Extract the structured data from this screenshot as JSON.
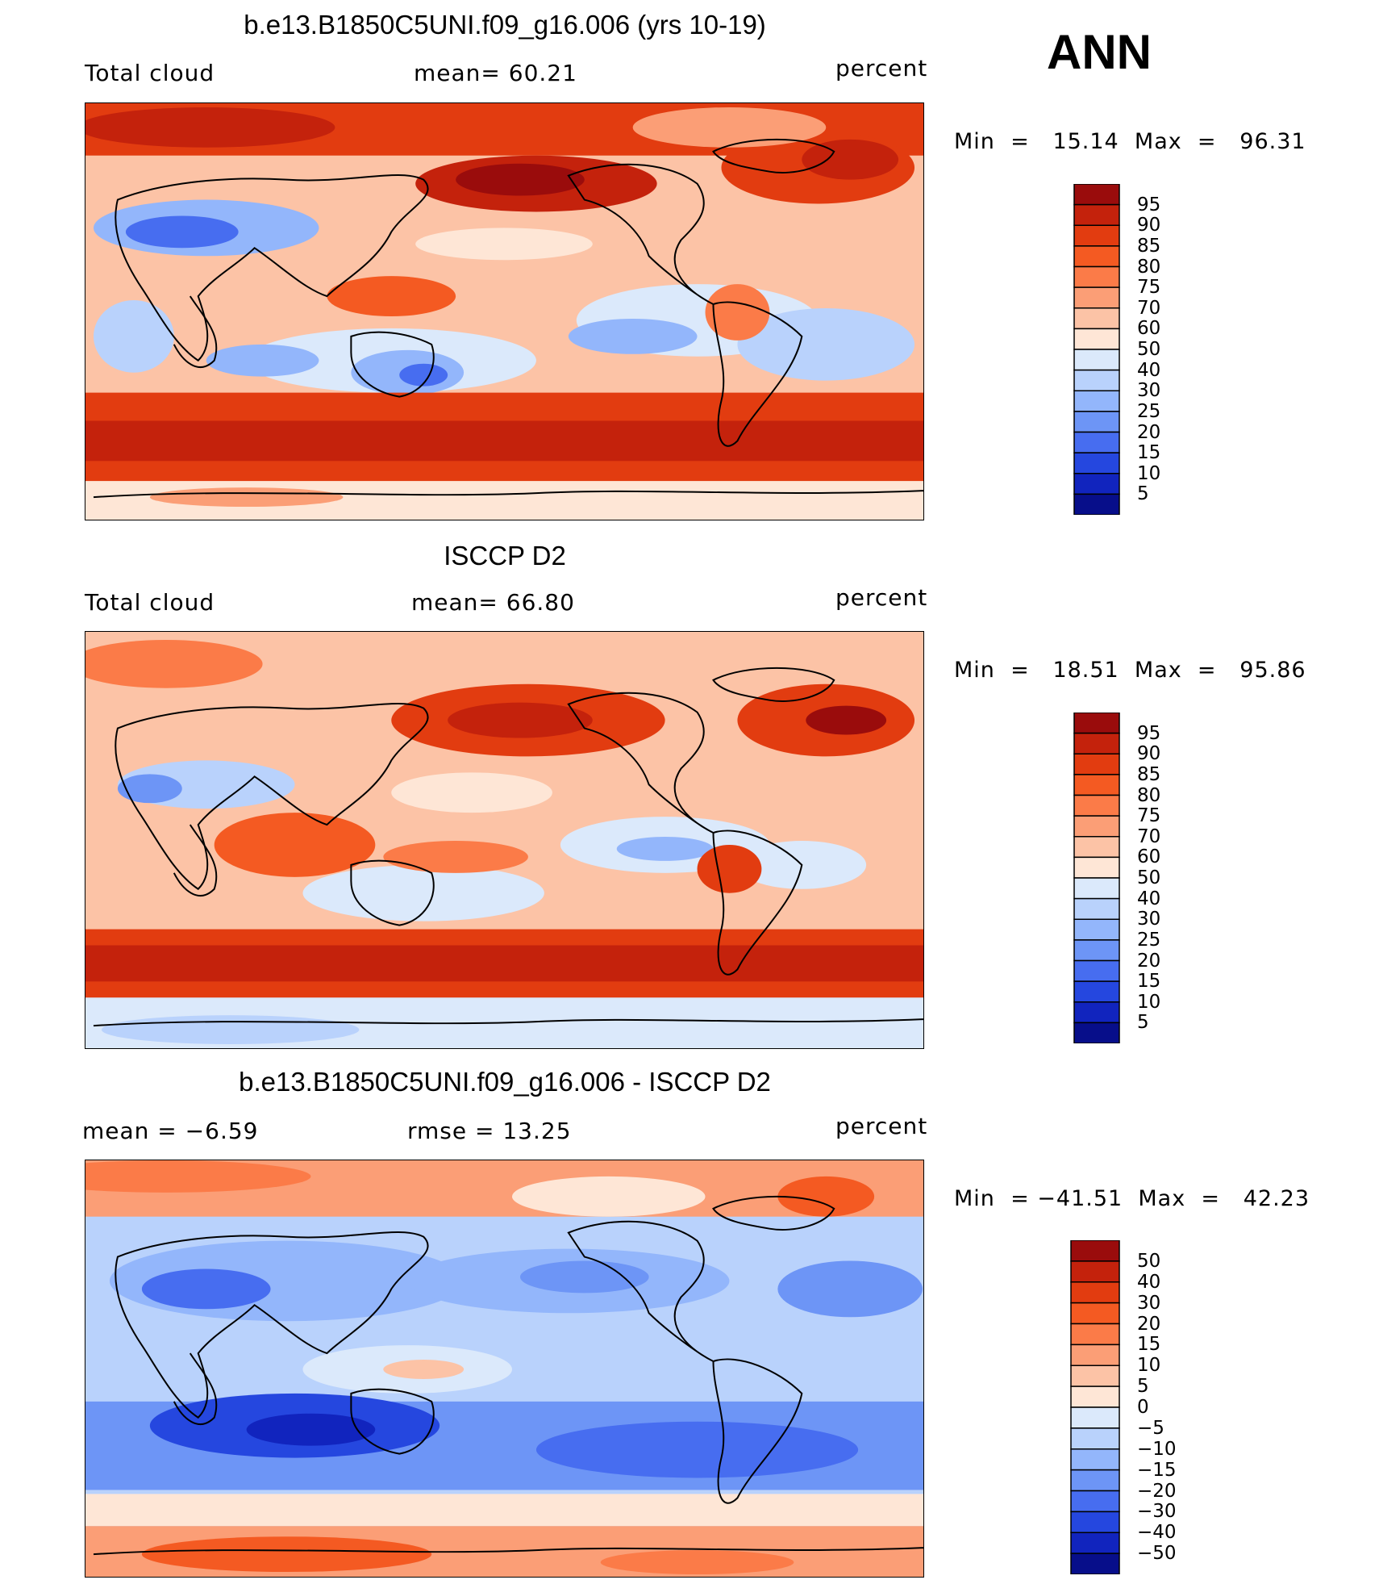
{
  "season": "ANN",
  "panels": [
    {
      "title": "b.e13.B1850C5UNI.f09_g16.006 (yrs 10-19)",
      "left_label": "Total cloud",
      "center_label": "mean=   60.21",
      "right_label": "percent",
      "minmax": "Min  =   15.14  Max  =   96.31",
      "colorbar": {
        "labels": [
          "95",
          "90",
          "85",
          "80",
          "75",
          "70",
          "60",
          "50",
          "40",
          "30",
          "25",
          "20",
          "15",
          "10",
          "5"
        ],
        "colors": [
          "#9a0c0c",
          "#c4220c",
          "#e23c10",
          "#f45a22",
          "#fb7b48",
          "#fb9e76",
          "#fcc3a6",
          "#fee6d6",
          "#dbe9fb",
          "#b9d2fc",
          "#93b6fb",
          "#6d95f6",
          "#476df0",
          "#2547df",
          "#1124be",
          "#070e8a"
        ]
      }
    },
    {
      "title": "ISCCP D2",
      "left_label": "Total cloud",
      "center_label": "mean=   66.80",
      "right_label": "percent",
      "minmax": "Min  =   18.51  Max  =   95.86",
      "colorbar": {
        "labels": [
          "95",
          "90",
          "85",
          "80",
          "75",
          "70",
          "60",
          "50",
          "40",
          "30",
          "25",
          "20",
          "15",
          "10",
          "5"
        ],
        "colors": [
          "#9a0c0c",
          "#c4220c",
          "#e23c10",
          "#f45a22",
          "#fb7b48",
          "#fb9e76",
          "#fcc3a6",
          "#fee6d6",
          "#dbe9fb",
          "#b9d2fc",
          "#93b6fb",
          "#6d95f6",
          "#476df0",
          "#2547df",
          "#1124be",
          "#070e8a"
        ]
      }
    },
    {
      "title": "b.e13.B1850C5UNI.f09_g16.006 - ISCCP D2",
      "left_label": "mean  =    −6.59",
      "center_label": "rmse  =    13.25",
      "right_label": "percent",
      "minmax": "Min  = −41.51  Max  =   42.23",
      "colorbar": {
        "labels": [
          "50",
          "40",
          "30",
          "20",
          "15",
          "10",
          "5",
          "0",
          "−5",
          "−10",
          "−15",
          "−20",
          "−30",
          "−40",
          "−50"
        ],
        "colors": [
          "#9a0c0c",
          "#c4220c",
          "#e23c10",
          "#f45a22",
          "#fb7b48",
          "#fb9e76",
          "#fcc3a6",
          "#fee6d6",
          "#dbe9fb",
          "#b9d2fc",
          "#93b6fb",
          "#6d95f6",
          "#476df0",
          "#2547df",
          "#1124be",
          "#070e8a"
        ]
      }
    }
  ]
}
